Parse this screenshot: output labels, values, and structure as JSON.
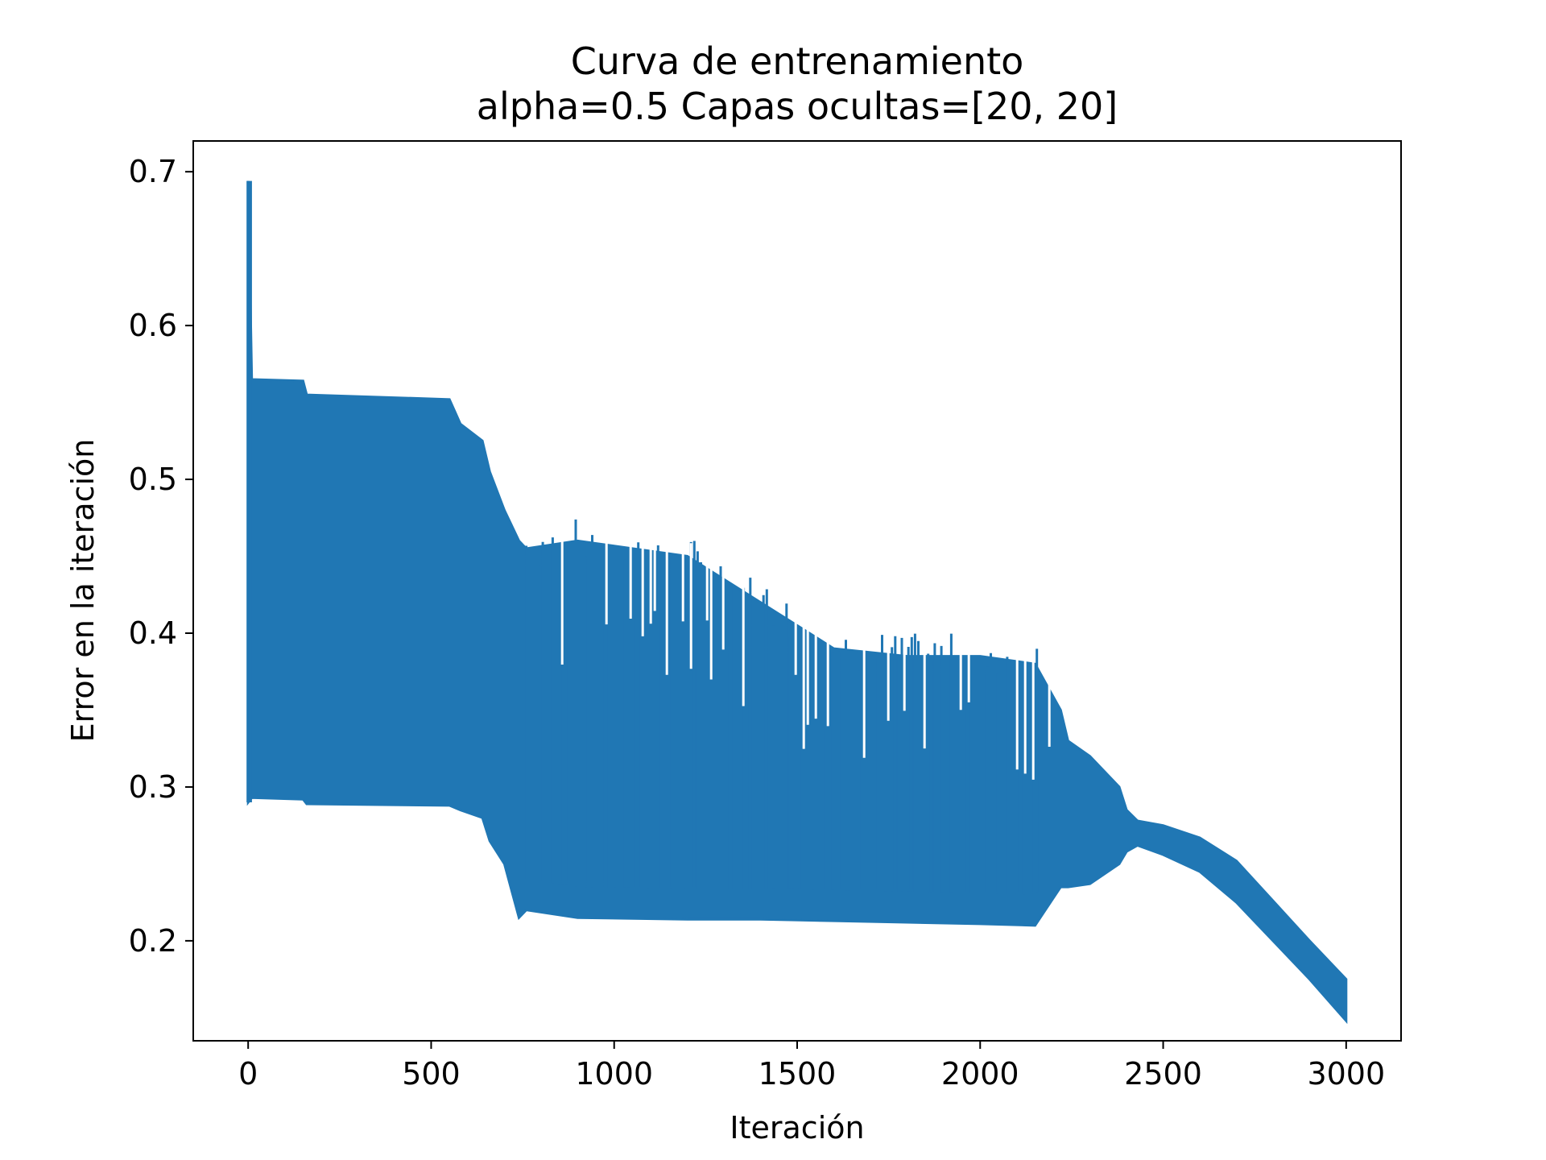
{
  "chart_data": {
    "type": "line",
    "title": "Curva de entrenamiento",
    "subtitle": "alpha=0.5 Capas ocultas=[20, 20]",
    "xlabel": "Iteración",
    "ylabel": "Error en la iteración",
    "xlim": [
      -150,
      3150
    ],
    "ylim": [
      0.135,
      0.72
    ],
    "xticks": [
      0,
      500,
      1000,
      1500,
      2000,
      2500,
      3000
    ],
    "xtick_labels": [
      "0",
      "500",
      "1000",
      "1500",
      "2000",
      "2500",
      "3000"
    ],
    "yticks": [
      0.2,
      0.3,
      0.4,
      0.5,
      0.6,
      0.7
    ],
    "ytick_labels": [
      "0.2",
      "0.3",
      "0.4",
      "0.5",
      "0.6",
      "0.7"
    ],
    "grid": false,
    "series": [
      {
        "color": "#2077b4",
        "description_envelope": true,
        "x": [
          0,
          10,
          150,
          160,
          550,
          580,
          640,
          660,
          700,
          740,
          760,
          900,
          1200,
          1400,
          1600,
          1800,
          2000,
          2150,
          2220,
          2240,
          2300,
          2380,
          2400,
          2430,
          2500,
          2600,
          2700,
          2800,
          2900,
          3000
        ],
        "upper": [
          0.694,
          0.565,
          0.564,
          0.555,
          0.552,
          0.536,
          0.525,
          0.505,
          0.48,
          0.46,
          0.455,
          0.46,
          0.45,
          0.42,
          0.39,
          0.385,
          0.385,
          0.38,
          0.35,
          0.33,
          0.32,
          0.3,
          0.285,
          0.278,
          0.275,
          0.267,
          0.252,
          0.226,
          0.2,
          0.175
        ],
        "lower": [
          0.29,
          0.293,
          0.292,
          0.289,
          0.288,
          0.285,
          0.28,
          0.265,
          0.25,
          0.215,
          0.22,
          0.215,
          0.214,
          0.214,
          0.213,
          0.212,
          0.211,
          0.21,
          0.235,
          0.235,
          0.237,
          0.25,
          0.258,
          0.262,
          0.256,
          0.245,
          0.225,
          0.2,
          0.175,
          0.148
        ]
      }
    ]
  }
}
